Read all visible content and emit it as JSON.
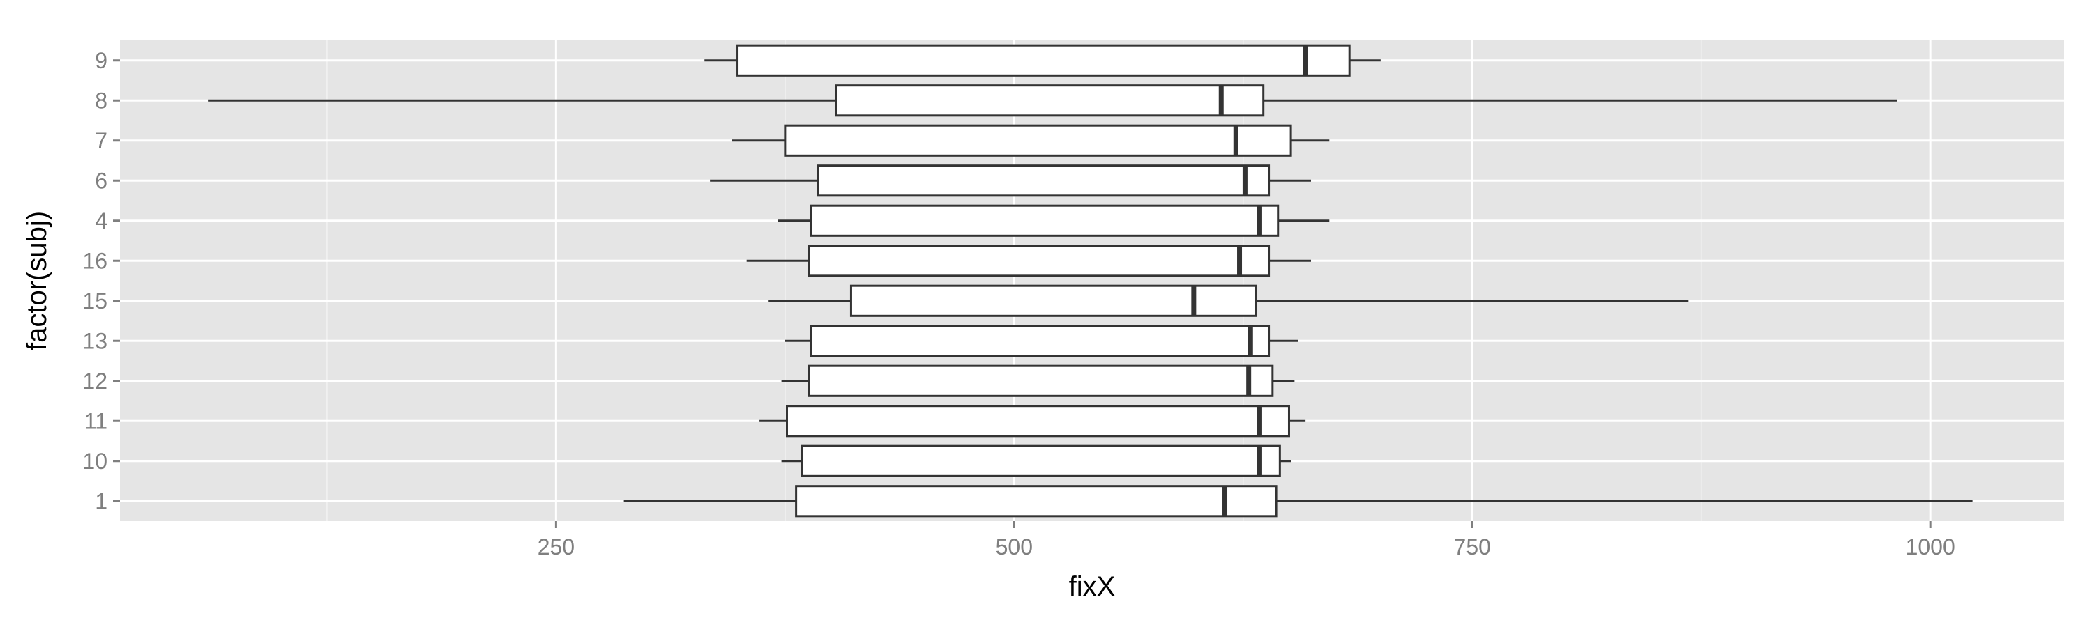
{
  "chart_data": {
    "type": "boxplot",
    "orientation": "horizontal",
    "xlabel": "fixX",
    "ylabel": "factor(subj)",
    "xlim": [
      12,
      1073
    ],
    "x_ticks": [
      250,
      500,
      750,
      1000
    ],
    "x_tick_labels": [
      "250",
      "500",
      "750",
      "1000"
    ],
    "x_minor_ticks": [
      125,
      375,
      625,
      875
    ],
    "grid": true,
    "background": "#e5e5e5",
    "grid_color": "#ffffff",
    "box_fill": "#ffffff",
    "box_stroke": "#333333",
    "categories": [
      "1",
      "10",
      "11",
      "12",
      "13",
      "15",
      "16",
      "4",
      "6",
      "7",
      "8",
      "9"
    ],
    "boxes": [
      {
        "label": "1",
        "whisker_low": 287,
        "q1": 381,
        "median": 615,
        "q3": 643,
        "whisker_high": 1023
      },
      {
        "label": "10",
        "whisker_low": 373,
        "q1": 384,
        "median": 634,
        "q3": 645,
        "whisker_high": 651
      },
      {
        "label": "11",
        "whisker_low": 361,
        "q1": 376,
        "median": 634,
        "q3": 650,
        "whisker_high": 659
      },
      {
        "label": "12",
        "whisker_low": 373,
        "q1": 388,
        "median": 628,
        "q3": 641,
        "whisker_high": 653
      },
      {
        "label": "13",
        "whisker_low": 375,
        "q1": 389,
        "median": 629,
        "q3": 639,
        "whisker_high": 655
      },
      {
        "label": "15",
        "whisker_low": 366,
        "q1": 411,
        "median": 598,
        "q3": 632,
        "whisker_high": 868
      },
      {
        "label": "16",
        "whisker_low": 354,
        "q1": 388,
        "median": 623,
        "q3": 639,
        "whisker_high": 662
      },
      {
        "label": "4",
        "whisker_low": 371,
        "q1": 389,
        "median": 634,
        "q3": 644,
        "whisker_high": 672
      },
      {
        "label": "6",
        "whisker_low": 334,
        "q1": 393,
        "median": 626,
        "q3": 639,
        "whisker_high": 662
      },
      {
        "label": "7",
        "whisker_low": 346,
        "q1": 375,
        "median": 621,
        "q3": 651,
        "whisker_high": 672
      },
      {
        "label": "8",
        "whisker_low": 60,
        "q1": 403,
        "median": 613,
        "q3": 636,
        "whisker_high": 982
      },
      {
        "label": "9",
        "whisker_low": 331,
        "q1": 349,
        "median": 659,
        "q3": 683,
        "whisker_high": 700
      }
    ]
  }
}
